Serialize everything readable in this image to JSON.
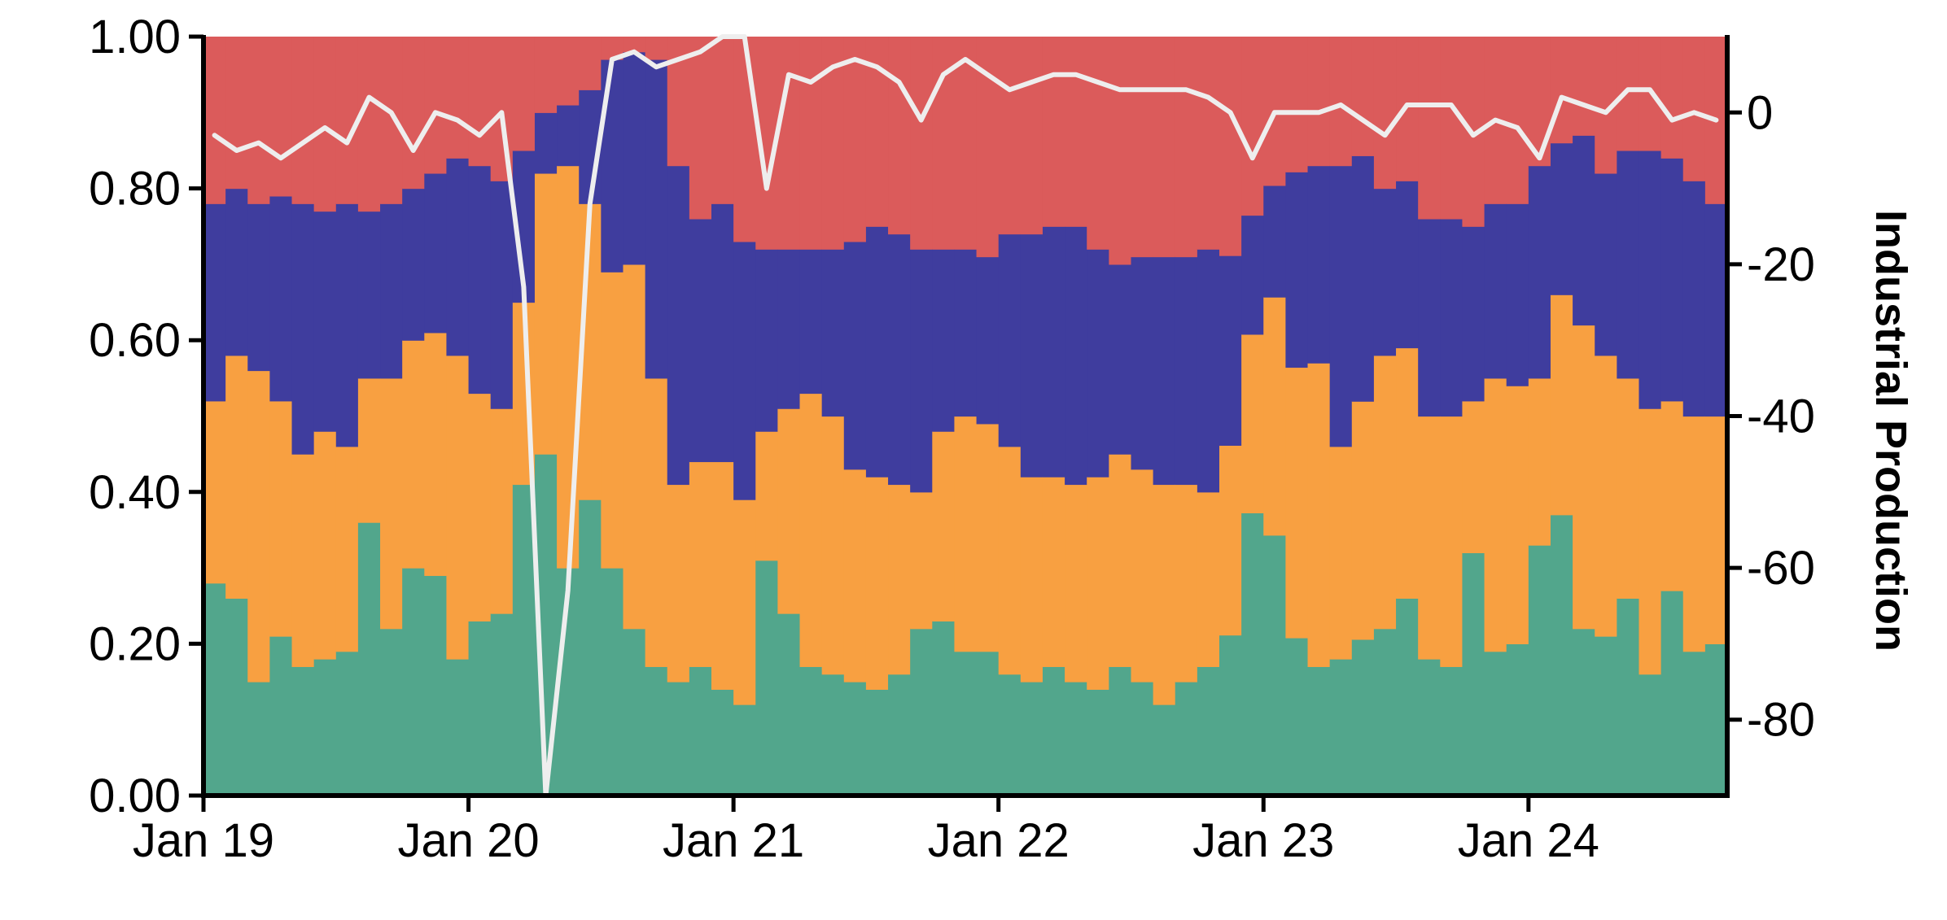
{
  "chart_data": {
    "type": "area",
    "stacked": true,
    "normalized": true,
    "x_start": "2019-01",
    "x_end": "2024-09",
    "x_step": "month",
    "x_tick_labels": [
      "Jan 19",
      "Jan 20",
      "Jan 21",
      "Jan 22",
      "Jan 23",
      "Jan 24"
    ],
    "x_tick_months": [
      "2019-01",
      "2020-01",
      "2021-01",
      "2022-01",
      "2023-01",
      "2024-01"
    ],
    "ylim": [
      0,
      1
    ],
    "y_ticks": [
      0.0,
      0.2,
      0.4,
      0.6,
      0.8,
      1.0
    ],
    "y_tick_labels": [
      "0.00",
      "0.20",
      "0.40",
      "0.60",
      "0.80",
      "1.00"
    ],
    "y2label": "Industrial Production",
    "y2lim": [
      -90,
      10
    ],
    "y2_ticks": [
      0,
      -20,
      -40,
      -60,
      -80
    ],
    "y2_tick_labels": [
      "0",
      "-20",
      "-40",
      "-60",
      "-80"
    ],
    "series": [
      {
        "color": "#52a68c",
        "values": [
          0.28,
          0.26,
          0.15,
          0.21,
          0.17,
          0.18,
          0.19,
          0.36,
          0.22,
          0.3,
          0.29,
          0.18,
          0.23,
          0.24,
          0.41,
          0.45,
          0.3,
          0.39,
          0.3,
          0.22,
          0.17,
          0.15,
          0.17,
          0.14,
          0.12,
          0.31,
          0.24,
          0.17,
          0.16,
          0.15,
          0.14,
          0.16,
          0.22,
          0.23,
          0.19,
          0.19,
          0.16,
          0.15,
          0.17,
          0.15,
          0.14,
          0.17,
          0.15,
          0.12,
          0.15,
          0.17,
          0.22,
          0.38,
          0.35,
          0.21,
          0.17,
          0.18,
          0.21,
          0.22,
          0.26,
          0.18,
          0.17,
          0.32,
          0.19,
          0.2,
          0.33,
          0.37,
          0.22,
          0.21,
          0.26,
          0.16,
          0.27,
          0.19,
          0.2
        ]
      },
      {
        "color": "#f8a041",
        "values": [
          0.24,
          0.32,
          0.41,
          0.31,
          0.28,
          0.3,
          0.27,
          0.19,
          0.33,
          0.3,
          0.32,
          0.4,
          0.3,
          0.27,
          0.24,
          0.37,
          0.53,
          0.39,
          0.39,
          0.48,
          0.38,
          0.26,
          0.27,
          0.3,
          0.27,
          0.17,
          0.27,
          0.36,
          0.34,
          0.28,
          0.28,
          0.25,
          0.18,
          0.25,
          0.31,
          0.3,
          0.3,
          0.27,
          0.25,
          0.26,
          0.28,
          0.28,
          0.28,
          0.29,
          0.26,
          0.23,
          0.26,
          0.24,
          0.32,
          0.36,
          0.4,
          0.28,
          0.32,
          0.36,
          0.33,
          0.32,
          0.33,
          0.2,
          0.36,
          0.34,
          0.22,
          0.29,
          0.4,
          0.37,
          0.29,
          0.35,
          0.25,
          0.31,
          0.3
        ]
      },
      {
        "color": "#3f3d9e",
        "values": [
          0.26,
          0.22,
          0.22,
          0.27,
          0.33,
          0.29,
          0.32,
          0.22,
          0.23,
          0.2,
          0.21,
          0.26,
          0.3,
          0.3,
          0.2,
          0.08,
          0.08,
          0.15,
          0.28,
          0.28,
          0.42,
          0.42,
          0.32,
          0.34,
          0.34,
          0.24,
          0.21,
          0.19,
          0.22,
          0.3,
          0.33,
          0.33,
          0.32,
          0.24,
          0.22,
          0.22,
          0.28,
          0.32,
          0.33,
          0.34,
          0.3,
          0.25,
          0.28,
          0.3,
          0.3,
          0.32,
          0.26,
          0.16,
          0.15,
          0.26,
          0.26,
          0.37,
          0.33,
          0.22,
          0.22,
          0.26,
          0.26,
          0.23,
          0.23,
          0.24,
          0.28,
          0.2,
          0.25,
          0.24,
          0.3,
          0.34,
          0.32,
          0.31,
          0.28
        ]
      },
      {
        "color": "#db5b5b",
        "values": [
          0.22,
          0.2,
          0.22,
          0.21,
          0.22,
          0.23,
          0.22,
          0.23,
          0.22,
          0.2,
          0.18,
          0.16,
          0.17,
          0.19,
          0.15,
          0.1,
          0.09,
          0.07,
          0.03,
          0.02,
          0.03,
          0.17,
          0.24,
          0.22,
          0.27,
          0.28,
          0.28,
          0.28,
          0.28,
          0.27,
          0.25,
          0.26,
          0.28,
          0.28,
          0.28,
          0.29,
          0.26,
          0.26,
          0.25,
          0.25,
          0.28,
          0.3,
          0.29,
          0.29,
          0.29,
          0.28,
          0.3,
          0.24,
          0.2,
          0.18,
          0.17,
          0.17,
          0.16,
          0.2,
          0.19,
          0.24,
          0.24,
          0.25,
          0.22,
          0.22,
          0.17,
          0.14,
          0.13,
          0.18,
          0.15,
          0.15,
          0.16,
          0.19,
          0.22
        ]
      }
    ],
    "line": {
      "color": "#eeeeee",
      "axis": "right",
      "values": [
        -3,
        -5,
        -4,
        -6,
        -4,
        -2,
        -4,
        2,
        0,
        -5,
        0,
        -1,
        -3,
        0,
        -23,
        -90,
        -63,
        -12,
        7,
        8,
        6,
        7,
        8,
        10,
        10,
        -10,
        5,
        4,
        6,
        7,
        6,
        4,
        -1,
        5,
        7,
        5,
        3,
        4,
        5,
        5,
        4,
        3,
        3,
        3,
        3,
        2,
        0,
        -6,
        0,
        0,
        0,
        1,
        -1,
        -3,
        1,
        1,
        1,
        -3,
        -1,
        -2,
        -6,
        2,
        1,
        0,
        3,
        3,
        -1,
        0,
        -1
      ]
    }
  }
}
